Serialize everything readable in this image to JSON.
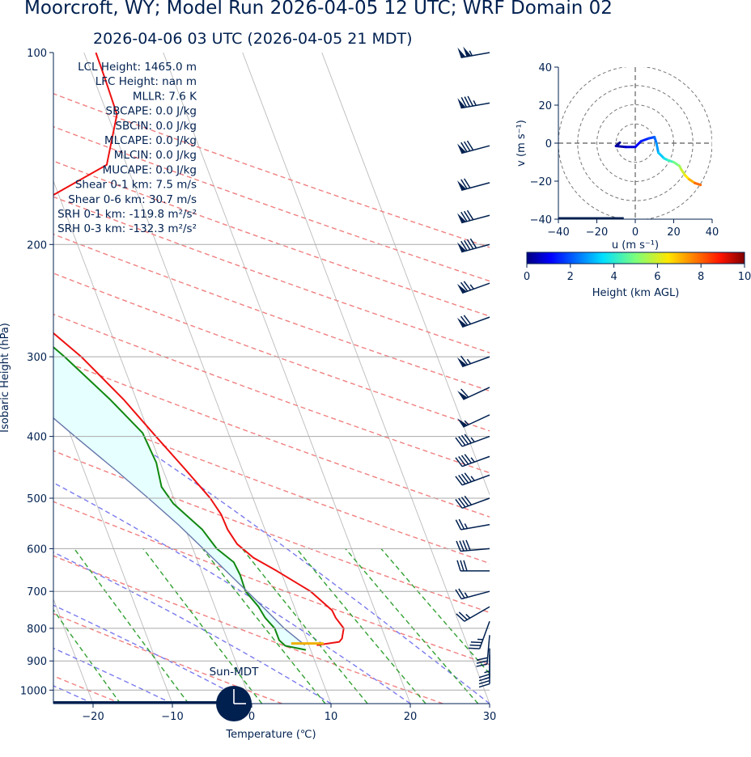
{
  "title": "Moorcroft, WY; Model Run 2026-04-05 12 UTC; WRF Domain 02",
  "subtitle": "2026-04-06 03 UTC  (2026-04-05 21 MDT)",
  "colors": {
    "navy": "#002050",
    "temperature": "#ee1111",
    "dewpoint": "#118811",
    "parcel": "#6677aa",
    "dry_adiabat": "#f08080",
    "moist_adiabat": "#7b7bee",
    "mixing_ratio": "#33a033",
    "cape_fill": "#e6ffff",
    "lcl_marker": "#f0b000"
  },
  "stats": [
    "LCL Height: 1465.0 m",
    "LFC Height: nan m",
    "MLLR: 7.6 K",
    "SBCAPE: 0.0 J/kg",
    "SBCIN: 0.0 J/kg",
    "MLCAPE: 0.0 J/kg",
    "MLCIN: 0.0 J/kg",
    "MUCAPE: 0.0 J/kg",
    "Shear 0-1 km: 7.5 m/s",
    "Shear 0-6 km: 30.7 m/s",
    "SRH 0-1 km: -119.8 m²/s²",
    "SRH 0-3 km: -132.3 m²/s²"
  ],
  "clock_label": "Sun-MDT",
  "clock_icon": "moon-night-icon",
  "chart_data": [
    {
      "type": "skew-t",
      "xlabel": "Temperature (℃)",
      "ylabel": "Isobaric Height (hPa)",
      "xlim": [
        -25,
        30
      ],
      "ylim": [
        1050,
        100
      ],
      "y_scale": "log",
      "xticks": [
        -20,
        -10,
        0,
        10,
        20,
        30
      ],
      "yticks": [
        100,
        200,
        300,
        400,
        500,
        600,
        700,
        800,
        900,
        1000
      ],
      "skew_deg_per_decade": 30.5,
      "series": [
        {
          "role": "temperature",
          "points": [
            [
              850,
              11
            ],
            [
              840,
              14
            ],
            [
              830,
              14.5
            ],
            [
              800,
              15.2
            ],
            [
              770,
              14.7
            ],
            [
              750,
              14.6
            ],
            [
              700,
              12.8
            ],
            [
              650,
              9.5
            ],
            [
              620,
              7.2
            ],
            [
              590,
              5.8
            ],
            [
              560,
              5.3
            ],
            [
              530,
              5.2
            ],
            [
              500,
              4.6
            ],
            [
              450,
              2.8
            ],
            [
              400,
              0.7
            ],
            [
              350,
              -1.6
            ],
            [
              300,
              -4.9
            ],
            [
              250,
              -10.0
            ],
            [
              220,
              -12.5
            ],
            [
              198,
              -11.0
            ],
            [
              185,
              -6.0
            ],
            [
              168,
              -1.0
            ],
            [
              150,
              7.5
            ],
            [
              125,
              11.2
            ],
            [
              110,
              11.4
            ],
            [
              100,
              11.5
            ]
          ]
        },
        {
          "role": "dewpoint",
          "points": [
            [
              865,
              9.4
            ],
            [
              852,
              7.0
            ],
            [
              835,
              6.5
            ],
            [
              800,
              6.5
            ],
            [
              770,
              5.8
            ],
            [
              740,
              5.5
            ],
            [
              700,
              4.6
            ],
            [
              660,
              4.7
            ],
            [
              630,
              4.5
            ],
            [
              600,
              3.0
            ],
            [
              560,
              2.1
            ],
            [
              510,
              -0.3
            ],
            [
              480,
              -1.0
            ],
            [
              440,
              -0.5
            ],
            [
              395,
              -0.8
            ],
            [
              350,
              -3.3
            ],
            [
              300,
              -7.0
            ],
            [
              255,
              -11.5
            ],
            [
              215,
              -13.5
            ],
            [
              190,
              -12.6
            ],
            [
              168,
              -12.2
            ],
            [
              150,
              -10.5
            ],
            [
              130,
              -7.8
            ],
            [
              110,
              -4.5
            ],
            [
              100,
              -3.5
            ]
          ]
        },
        {
          "role": "parcel",
          "points": [
            [
              850,
              9.5
            ],
            [
              800,
              7.7
            ],
            [
              750,
              6.3
            ],
            [
              700,
              4.8
            ],
            [
              650,
              3.1
            ],
            [
              600,
              1.3
            ],
            [
              550,
              -0.7
            ],
            [
              500,
              -3.2
            ],
            [
              450,
              -6.1
            ],
            [
              400,
              -9.5
            ],
            [
              350,
              -13.2
            ],
            [
              300,
              -17.7
            ],
            [
              265,
              -21.0
            ],
            [
              250,
              -22.8
            ],
            [
              200,
              -28.0
            ],
            [
              185,
              -30.5
            ]
          ]
        }
      ],
      "lcl": {
        "pressure": 845,
        "temperature": 9.9
      },
      "wind_barbs": [
        {
          "p": 100,
          "speed_kt": 105,
          "dir_deg": 260
        },
        {
          "p": 120,
          "speed_kt": 85,
          "dir_deg": 260
        },
        {
          "p": 140,
          "speed_kt": 80,
          "dir_deg": 255
        },
        {
          "p": 160,
          "speed_kt": 70,
          "dir_deg": 255
        },
        {
          "p": 180,
          "speed_kt": 80,
          "dir_deg": 255
        },
        {
          "p": 200,
          "speed_kt": 90,
          "dir_deg": 255
        },
        {
          "p": 230,
          "speed_kt": 75,
          "dir_deg": 250
        },
        {
          "p": 260,
          "speed_kt": 70,
          "dir_deg": 250
        },
        {
          "p": 300,
          "speed_kt": 65,
          "dir_deg": 250
        },
        {
          "p": 335,
          "speed_kt": 60,
          "dir_deg": 245
        },
        {
          "p": 370,
          "speed_kt": 55,
          "dir_deg": 245
        },
        {
          "p": 400,
          "speed_kt": 45,
          "dir_deg": 250
        },
        {
          "p": 430,
          "speed_kt": 45,
          "dir_deg": 250
        },
        {
          "p": 460,
          "speed_kt": 45,
          "dir_deg": 250
        },
        {
          "p": 500,
          "speed_kt": 40,
          "dir_deg": 250
        },
        {
          "p": 550,
          "speed_kt": 25,
          "dir_deg": 260
        },
        {
          "p": 600,
          "speed_kt": 40,
          "dir_deg": 265
        },
        {
          "p": 650,
          "speed_kt": 30,
          "dir_deg": 270
        },
        {
          "p": 700,
          "speed_kt": 25,
          "dir_deg": 255
        },
        {
          "p": 740,
          "speed_kt": 25,
          "dir_deg": 240
        },
        {
          "p": 780,
          "speed_kt": 35,
          "dir_deg": 200
        },
        {
          "p": 820,
          "speed_kt": 30,
          "dir_deg": 185
        },
        {
          "p": 860,
          "speed_kt": 25,
          "dir_deg": 180
        },
        {
          "p": 880,
          "speed_kt": 25,
          "dir_deg": 180
        }
      ]
    },
    {
      "type": "hodograph",
      "xlabel": "u (m s⁻¹)",
      "ylabel": "v (m s⁻¹)",
      "xlim": [
        -40,
        40
      ],
      "ylim": [
        -40,
        40
      ],
      "xticks": [
        -40,
        -20,
        0,
        20,
        40
      ],
      "yticks": [
        -40,
        -20,
        0,
        20,
        40
      ],
      "rings": [
        10,
        20,
        30,
        40
      ],
      "points": [
        {
          "u": -8,
          "v": 0.3,
          "h": 0.0
        },
        {
          "u": -10,
          "v": -1.5,
          "h": 0.2
        },
        {
          "u": -5,
          "v": -2,
          "h": 0.5
        },
        {
          "u": 0,
          "v": -2,
          "h": 0.9
        },
        {
          "u": 3,
          "v": 1,
          "h": 1.2
        },
        {
          "u": 7,
          "v": 2.5,
          "h": 1.6
        },
        {
          "u": 10,
          "v": 3.2,
          "h": 2.0
        },
        {
          "u": 11,
          "v": 0,
          "h": 2.5
        },
        {
          "u": 12,
          "v": -5,
          "h": 3.0
        },
        {
          "u": 15,
          "v": -8,
          "h": 3.5
        },
        {
          "u": 17,
          "v": -9,
          "h": 4.0
        },
        {
          "u": 20,
          "v": -10,
          "h": 4.6
        },
        {
          "u": 23,
          "v": -12,
          "h": 5.2
        },
        {
          "u": 24,
          "v": -14,
          "h": 5.7
        },
        {
          "u": 26,
          "v": -17,
          "h": 6.2
        },
        {
          "u": 28,
          "v": -19,
          "h": 6.8
        },
        {
          "u": 31,
          "v": -21,
          "h": 7.5
        },
        {
          "u": 34,
          "v": -22,
          "h": 8.3
        }
      ],
      "colorbar": {
        "label": "Height (km AGL)",
        "range": [
          0,
          10
        ],
        "ticks": [
          0,
          2,
          4,
          6,
          8,
          10
        ]
      }
    }
  ]
}
